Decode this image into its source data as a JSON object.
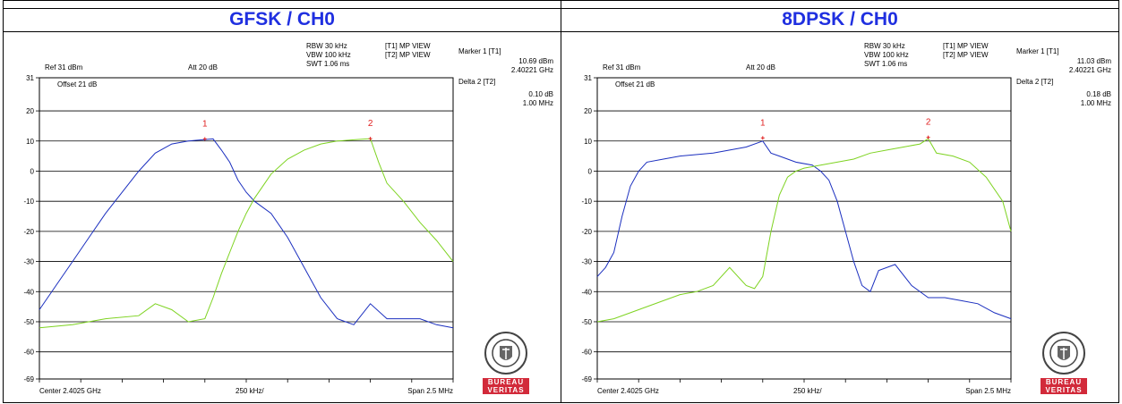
{
  "chart_data": [
    {
      "type": "line",
      "title": "GFSK / CH0",
      "settings": {
        "rbw": "RBW 30 kHz",
        "vbw": "VBW 100 kHz",
        "swt": "SWT 1.06 ms",
        "t1": "[T1] MP VIEW",
        "t2": "[T2] MP VIEW",
        "ref": "Ref 31 dBm",
        "att": "Att  20 dB",
        "offset": "Offset 21 dB"
      },
      "marker1": {
        "label": "Marker 1 [T1]",
        "level": "10.69 dBm",
        "freq": "2.40221 GHz"
      },
      "delta2": {
        "label": "Delta 2 [T2]",
        "level": "0.10 dB",
        "freq": "1.00 MHz"
      },
      "ylim": [
        -69,
        31
      ],
      "yticks": [
        "31",
        "20",
        "10",
        "0",
        "-10",
        "-20",
        "-30",
        "-40",
        "-50",
        "-60",
        "-69"
      ],
      "xlabels": {
        "left": "Center 2.4025 GHz",
        "mid": "250 kHz/",
        "right": "Span 2.5 MHz"
      },
      "series": [
        {
          "color": "#1b2fbf",
          "x": [
            0,
            0.04,
            0.08,
            0.12,
            0.16,
            0.2,
            0.24,
            0.28,
            0.32,
            0.36,
            0.4,
            0.42,
            0.44,
            0.46,
            0.48,
            0.5,
            0.52,
            0.56,
            0.6,
            0.64,
            0.68,
            0.72,
            0.76,
            0.8,
            0.84,
            0.88,
            0.92,
            0.96,
            1
          ],
          "y": [
            -46,
            -38,
            -30,
            -22,
            -14,
            -7,
            0,
            6,
            9,
            10,
            10.5,
            10.7,
            7,
            3,
            -3,
            -7,
            -10,
            -14,
            -22,
            -32,
            -42,
            -49,
            -51,
            -44,
            -49,
            -49,
            -49,
            -51,
            -52
          ]
        },
        {
          "color": "#7ed321",
          "x": [
            0,
            0.08,
            0.16,
            0.24,
            0.28,
            0.32,
            0.36,
            0.4,
            0.42,
            0.44,
            0.46,
            0.48,
            0.5,
            0.52,
            0.54,
            0.56,
            0.6,
            0.64,
            0.68,
            0.72,
            0.76,
            0.8,
            0.82,
            0.84,
            0.88,
            0.92,
            0.96,
            1
          ],
          "y": [
            -52,
            -51,
            -49,
            -48,
            -44,
            -46,
            -50,
            -49,
            -42,
            -34,
            -27,
            -20,
            -14,
            -9,
            -5,
            -1,
            4,
            7,
            9,
            10,
            10.4,
            10.8,
            3,
            -4,
            -10,
            -17,
            -23,
            -30
          ]
        }
      ],
      "markers": [
        {
          "label": "1",
          "x": 0.4,
          "y": 10.69
        },
        {
          "label": "2",
          "x": 0.8,
          "y": 10.79
        }
      ]
    },
    {
      "type": "line",
      "title": "8DPSK / CH0",
      "settings": {
        "rbw": "RBW 30 kHz",
        "vbw": "VBW 100 kHz",
        "swt": "SWT 1.06 ms",
        "t1": "[T1] MP VIEW",
        "t2": "[T2] MP VIEW",
        "ref": "Ref 31 dBm",
        "att": "Att  20 dB",
        "offset": "Offset 21 dB"
      },
      "marker1": {
        "label": "Marker 1 [T1]",
        "level": "11.03 dBm",
        "freq": "2.40221 GHz"
      },
      "delta2": {
        "label": "Delta 2 [T2]",
        "level": "0.18 dB",
        "freq": "1.00 MHz"
      },
      "ylim": [
        -69,
        31
      ],
      "yticks": [
        "31",
        "20",
        "10",
        "0",
        "-10",
        "-20",
        "-30",
        "-40",
        "-50",
        "-60",
        "-69"
      ],
      "xlabels": {
        "left": "Center 2.4025 GHz",
        "mid": "250 kHz/",
        "right": "Span 2.5 MHz"
      },
      "series": [
        {
          "color": "#1b2fbf",
          "x": [
            0,
            0.02,
            0.04,
            0.06,
            0.08,
            0.1,
            0.12,
            0.16,
            0.2,
            0.28,
            0.36,
            0.4,
            0.42,
            0.44,
            0.48,
            0.52,
            0.54,
            0.56,
            0.58,
            0.6,
            0.62,
            0.64,
            0.66,
            0.68,
            0.72,
            0.76,
            0.8,
            0.84,
            0.88,
            0.92,
            0.96,
            1
          ],
          "y": [
            -35,
            -32,
            -27,
            -15,
            -5,
            0,
            3,
            4,
            5,
            6,
            8,
            10,
            6,
            5,
            3,
            2,
            0,
            -3,
            -10,
            -20,
            -30,
            -38,
            -40,
            -33,
            -31,
            -38,
            -42,
            -42,
            -43,
            -44,
            -47,
            -49
          ]
        },
        {
          "color": "#7ed321",
          "x": [
            0,
            0.04,
            0.08,
            0.12,
            0.16,
            0.2,
            0.24,
            0.28,
            0.32,
            0.36,
            0.38,
            0.4,
            0.42,
            0.44,
            0.46,
            0.48,
            0.5,
            0.54,
            0.58,
            0.62,
            0.66,
            0.7,
            0.74,
            0.78,
            0.8,
            0.82,
            0.86,
            0.9,
            0.94,
            0.98,
            1
          ],
          "y": [
            -50,
            -49,
            -47,
            -45,
            -43,
            -41,
            -40,
            -38,
            -32,
            -38,
            -39,
            -35,
            -20,
            -8,
            -2,
            0,
            1,
            2,
            3,
            4,
            6,
            7,
            8,
            9,
            10.8,
            6,
            5,
            3,
            -2,
            -10,
            -20
          ]
        }
      ],
      "markers": [
        {
          "label": "1",
          "x": 0.4,
          "y": 11.03
        },
        {
          "label": "2",
          "x": 0.8,
          "y": 11.21
        }
      ]
    }
  ],
  "logo": {
    "seal": "BUREAU VERITAS 1828",
    "word1": "BUREAU",
    "word2": "VERITAS"
  }
}
